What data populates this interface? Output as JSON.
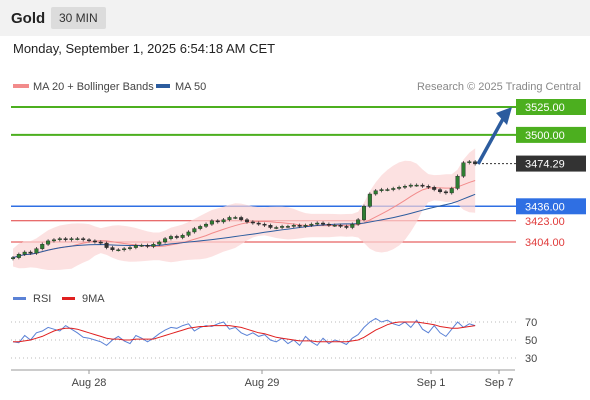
{
  "header": {
    "symbol": "Gold",
    "timeframe": "30 MIN"
  },
  "datetime": "Monday, September 1, 2025 6:54:18 AM CET",
  "legend": {
    "bb_label": "MA 20 + Bollinger Bands",
    "ma50_label": "MA 50",
    "credit": "Research © 2025 Trading Central"
  },
  "rsi_legend": {
    "rsi_label": "RSI",
    "ma_label": "9MA"
  },
  "colors": {
    "bb": "#f28b8b",
    "ma50": "#2c5c9e",
    "resistance": "#4caf1f",
    "pivot": "#2f6fe3",
    "support": "#e03b3b",
    "arrow": "#2c5c9e",
    "rsi": "#5b82d6",
    "rsi_ma": "#e02020"
  },
  "chart_data": [
    {
      "type": "candlestick",
      "title": "Gold 30 MIN",
      "x_ticks": [
        "Aug 28",
        "Aug 29",
        "Sep 1",
        "Sep 7"
      ],
      "ylim": [
        3385,
        3535
      ],
      "levels": [
        {
          "value": 3525.0,
          "label": "3525.00",
          "kind": "resistance"
        },
        {
          "value": 3500.0,
          "label": "3500.00",
          "kind": "resistance"
        },
        {
          "value": 3474.29,
          "label": "3474.29",
          "kind": "last"
        },
        {
          "value": 3436.0,
          "label": "3436.00",
          "kind": "pivot"
        },
        {
          "value": 3423.0,
          "label": "3423.00",
          "kind": "support"
        },
        {
          "value": 3404.0,
          "label": "3404.00",
          "kind": "support"
        }
      ],
      "close_series": [
        3390,
        3393,
        3395,
        3394,
        3398,
        3402,
        3405,
        3406,
        3407,
        3406,
        3407,
        3407,
        3406,
        3405,
        3404,
        3403,
        3399,
        3397,
        3397,
        3398,
        3399,
        3401,
        3401,
        3400,
        3402,
        3404,
        3407,
        3409,
        3408,
        3410,
        3413,
        3416,
        3418,
        3420,
        3423,
        3422,
        3424,
        3426,
        3426,
        3424,
        3422,
        3421,
        3420,
        3419,
        3417,
        3417,
        3418,
        3418,
        3419,
        3418,
        3419,
        3420,
        3421,
        3420,
        3419,
        3419,
        3418,
        3417,
        3420,
        3424,
        3436,
        3447,
        3450,
        3451,
        3451,
        3452,
        3453,
        3454,
        3455,
        3455,
        3454,
        3453,
        3451,
        3449,
        3448,
        3452,
        3463,
        3475,
        3476,
        3474
      ],
      "arrow": {
        "from": 3474,
        "to": 3525
      }
    },
    {
      "type": "line",
      "title": "RSI",
      "ylim": [
        20,
        80
      ],
      "y_ticks": [
        70,
        50,
        30
      ],
      "series": [
        {
          "name": "RSI",
          "values": [
            48,
            47,
            55,
            50,
            58,
            60,
            64,
            62,
            60,
            66,
            62,
            58,
            53,
            52,
            50,
            48,
            44,
            50,
            54,
            49,
            46,
            55,
            52,
            48,
            52,
            57,
            61,
            64,
            63,
            66,
            68,
            60,
            64,
            66,
            65,
            68,
            70,
            62,
            64,
            58,
            55,
            58,
            54,
            56,
            50,
            48,
            52,
            46,
            50,
            44,
            54,
            48,
            44,
            52,
            46,
            50,
            48,
            45,
            52,
            56,
            64,
            70,
            74,
            70,
            72,
            68,
            66,
            70,
            64,
            72,
            62,
            58,
            66,
            58,
            54,
            62,
            70,
            64,
            68,
            66
          ]
        },
        {
          "name": "9MA",
          "values": [
            48,
            48,
            49,
            50,
            52,
            54,
            57,
            60,
            62,
            63,
            63,
            62,
            60,
            58,
            56,
            54,
            52,
            51,
            51,
            50,
            50,
            51,
            51,
            51,
            51,
            53,
            55,
            57,
            59,
            61,
            63,
            64,
            65,
            65,
            66,
            66,
            66,
            66,
            65,
            64,
            62,
            60,
            58,
            57,
            55,
            53,
            52,
            51,
            50,
            49,
            49,
            49,
            48,
            48,
            48,
            48,
            48,
            48,
            49,
            50,
            53,
            57,
            61,
            64,
            67,
            69,
            70,
            70,
            70,
            70,
            69,
            68,
            67,
            65,
            64,
            63,
            63,
            64,
            65,
            66
          ]
        }
      ]
    }
  ]
}
